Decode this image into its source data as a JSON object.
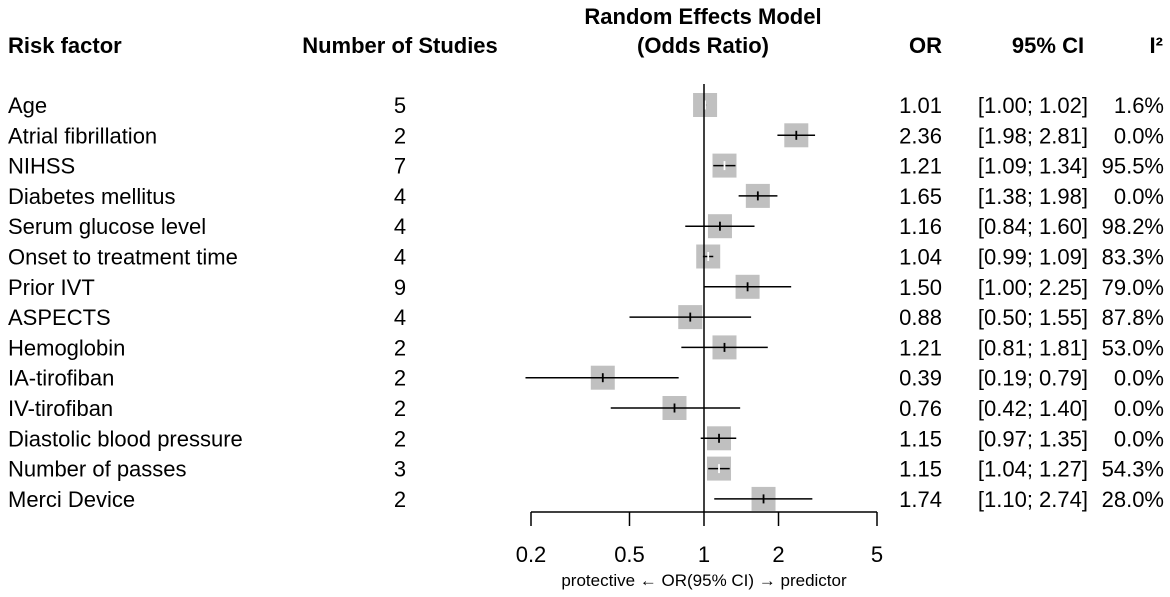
{
  "chart_data": {
    "type": "forest",
    "title_line1": "Random Effects Model",
    "title_line2": "(Odds Ratio)",
    "headers": {
      "factor": "Risk factor",
      "studies": "Number of Studies",
      "or": "OR",
      "ci": "95% CI",
      "i2": "I²"
    },
    "x_scale": "log",
    "xlim": [
      0.2,
      5
    ],
    "reference_line": 1,
    "x_ticks": [
      0.2,
      0.5,
      1,
      2,
      5
    ],
    "x_tick_labels": [
      "0.2",
      "0.5",
      "1",
      "2",
      "5"
    ],
    "xlabel": "protective ← OR(95% CI) → predictor",
    "box_color": "#c0c0c0",
    "rows": [
      {
        "factor": "Age",
        "studies": "5",
        "or": 1.01,
        "lower": 1.0,
        "upper": 1.02,
        "or_text": "1.01",
        "ci_text": "[1.00; 1.02]",
        "i2_text": "1.6%",
        "mark_color": "#ffffff"
      },
      {
        "factor": "Atrial fibrillation",
        "studies": "2",
        "or": 2.36,
        "lower": 1.98,
        "upper": 2.81,
        "or_text": "2.36",
        "ci_text": "[1.98; 2.81]",
        "i2_text": "0.0%",
        "mark_color": "#000000"
      },
      {
        "factor": "NIHSS",
        "studies": "7",
        "or": 1.21,
        "lower": 1.09,
        "upper": 1.34,
        "or_text": "1.21",
        "ci_text": "[1.09; 1.34]",
        "i2_text": "95.5%",
        "mark_color": "#ffffff"
      },
      {
        "factor": "Diabetes mellitus",
        "studies": "4",
        "or": 1.65,
        "lower": 1.38,
        "upper": 1.98,
        "or_text": "1.65",
        "ci_text": "[1.38; 1.98]",
        "i2_text": "0.0%",
        "mark_color": "#000000"
      },
      {
        "factor": "Serum glucose level",
        "studies": "4",
        "or": 1.16,
        "lower": 0.84,
        "upper": 1.6,
        "or_text": "1.16",
        "ci_text": "[0.84; 1.60]",
        "i2_text": "98.2%",
        "mark_color": "#000000"
      },
      {
        "factor": "Onset to treatment time",
        "studies": "4",
        "or": 1.04,
        "lower": 0.99,
        "upper": 1.09,
        "or_text": "1.04",
        "ci_text": "[0.99; 1.09]",
        "i2_text": "83.3%",
        "mark_color": "#ffffff"
      },
      {
        "factor": "Prior IVT",
        "studies": "9",
        "or": 1.5,
        "lower": 1.0,
        "upper": 2.25,
        "or_text": "1.50",
        "ci_text": "[1.00; 2.25]",
        "i2_text": "79.0%",
        "mark_color": "#000000"
      },
      {
        "factor": "ASPECTS",
        "studies": "4",
        "or": 0.88,
        "lower": 0.5,
        "upper": 1.55,
        "or_text": "0.88",
        "ci_text": "[0.50; 1.55]",
        "i2_text": "87.8%",
        "mark_color": "#000000"
      },
      {
        "factor": "Hemoglobin",
        "studies": "2",
        "or": 1.21,
        "lower": 0.81,
        "upper": 1.81,
        "or_text": "1.21",
        "ci_text": "[0.81; 1.81]",
        "i2_text": "53.0%",
        "mark_color": "#000000"
      },
      {
        "factor": "IA-tirofiban",
        "studies": "2",
        "or": 0.39,
        "lower": 0.19,
        "upper": 0.79,
        "or_text": "0.39",
        "ci_text": "[0.19; 0.79]",
        "i2_text": "0.0%",
        "mark_color": "#000000"
      },
      {
        "factor": "IV-tirofiban",
        "studies": "2",
        "or": 0.76,
        "lower": 0.42,
        "upper": 1.4,
        "or_text": "0.76",
        "ci_text": "[0.42; 1.40]",
        "i2_text": "0.0%",
        "mark_color": "#000000"
      },
      {
        "factor": "Diastolic blood pressure",
        "studies": "2",
        "or": 1.15,
        "lower": 0.97,
        "upper": 1.35,
        "or_text": "1.15",
        "ci_text": "[0.97; 1.35]",
        "i2_text": "0.0%",
        "mark_color": "#000000"
      },
      {
        "factor": "Number of passes",
        "studies": "3",
        "or": 1.15,
        "lower": 1.04,
        "upper": 1.27,
        "or_text": "1.15",
        "ci_text": "[1.04; 1.27]",
        "i2_text": "54.3%",
        "mark_color": "#ffffff"
      },
      {
        "factor": "Merci Device",
        "studies": "2",
        "or": 1.74,
        "lower": 1.1,
        "upper": 2.74,
        "or_text": "1.74",
        "ci_text": "[1.10; 2.74]",
        "i2_text": "28.0%",
        "mark_color": "#000000"
      }
    ]
  }
}
